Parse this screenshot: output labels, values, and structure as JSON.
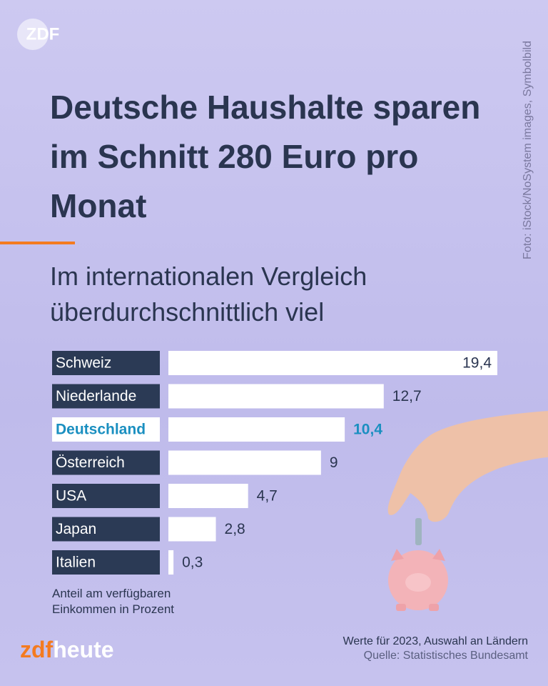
{
  "logo": "ZDF",
  "photo_credit": "Foto: iStock/NoSystem images, Symbolbild",
  "brand": {
    "prefix": "zdf",
    "suffix": "heute"
  },
  "chart_data": {
    "type": "bar",
    "title": "Deutsche Haushalte sparen im Schnitt 280 Euro pro Monat",
    "subtitle": "Im internationalen Vergleich überdurchschnittlich viel",
    "categories": [
      "Schweiz",
      "Niederlande",
      "Deutschland",
      "Österreich",
      "USA",
      "Japan",
      "Italien"
    ],
    "values": [
      19.4,
      12.7,
      10.4,
      9,
      4.7,
      2.8,
      0.3
    ],
    "value_labels": [
      "19,4",
      "12,7",
      "10,4",
      "9",
      "4,7",
      "2,8",
      "0,3"
    ],
    "color": "#ffffff",
    "highlight_index": 2,
    "highlight_color": "#1a8fc0",
    "label_box_color": "#2b3a55",
    "note": "Anteil am verfügbaren Einkommen in Prozent",
    "footnote": "Werte für 2023, Auswahl an Ländern",
    "source": "Quelle: Statistisches Bundesamt"
  }
}
